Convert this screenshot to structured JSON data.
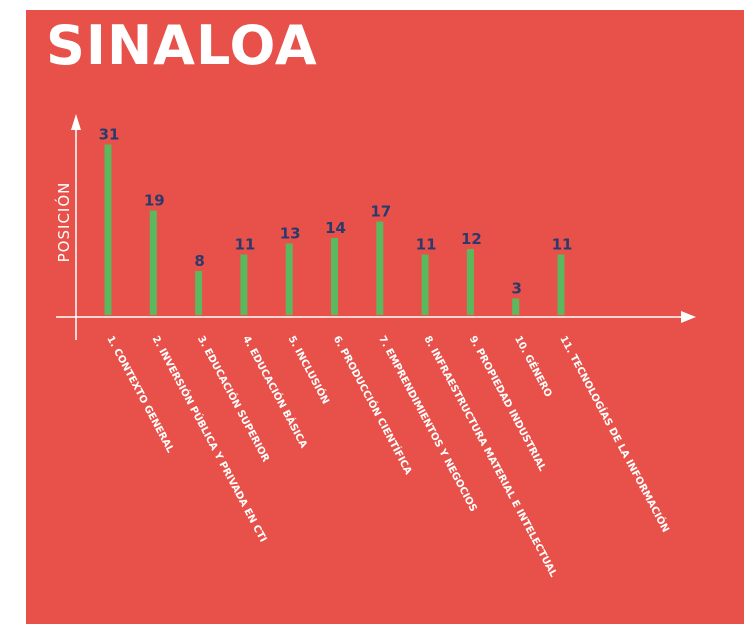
{
  "title": "SINALOA",
  "colors": {
    "background": "#e8514a",
    "bar": "#5cb85c",
    "value_label": "#2b3a6b",
    "text": "#ffffff"
  },
  "chart_data": {
    "type": "bar",
    "title": "SINALOA",
    "xlabel": "",
    "ylabel": "POSICIÓN",
    "ylim": [
      0,
      33
    ],
    "grid": false,
    "categories": [
      "1. CONTEXTO GENERAL",
      "2. INVERSIÓN PÚBLICA Y PRIVADA EN CTI",
      "3. EDUCACIÓN SUPERIOR",
      "4. EDUCACIÓN BÁSICA",
      "5. INCLUSIÓN",
      "6. PRODUCCIÓN CIENTÍFICA",
      "7. EMPRENDIMIENTOS Y NEGOCIOS",
      "8. INFRAESTRUCTURA MATERIAL E INTELECTUAL",
      "9. PROPIEDAD INDUSTRIAL",
      "10. GÉNERO",
      "11. TECNOLOGÍAS DE LA INFORMACIÓN"
    ],
    "values": [
      31,
      19,
      8,
      11,
      13,
      14,
      17,
      11,
      12,
      3,
      11
    ]
  }
}
